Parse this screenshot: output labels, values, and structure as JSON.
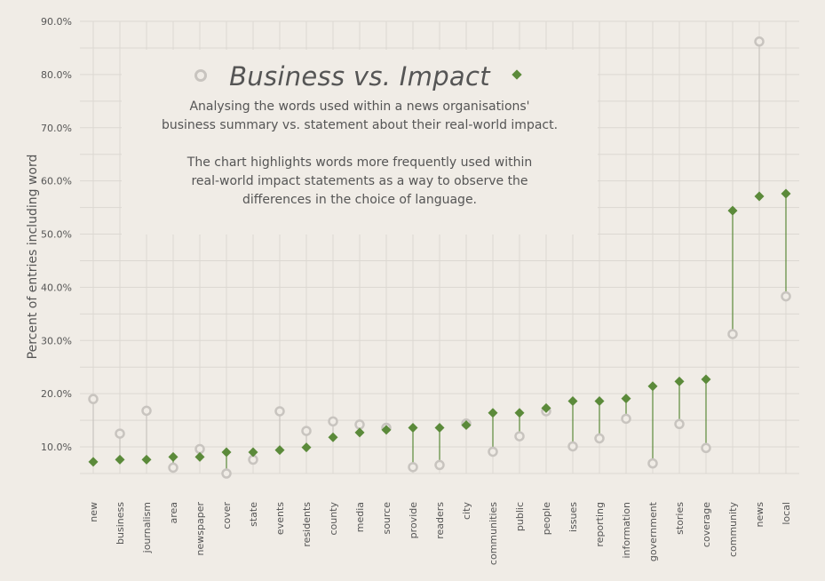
{
  "title": "Business vs. Impact",
  "description_1": "Analysing the words used within a news organisations'\nbusiness summary vs. statement about their real-world impact.",
  "description_2": "The chart highlights words more frequently used within\nreal-world impact statements as a way to observe the\ndifferences in the choice of language.",
  "colors": {
    "background": "#f0ece6",
    "grid": "#dcd8d2",
    "business_marker": "#c8c4bf",
    "impact_marker": "#5b8a3a",
    "text": "#555555"
  },
  "chart_data": {
    "type": "dumbbell",
    "ylabel": "Percent of entries including word",
    "ylim": [
      5,
      90
    ],
    "yticks": [
      "10.0%",
      "20.0%",
      "30.0%",
      "40.0%",
      "50.0%",
      "60.0%",
      "70.0%",
      "80.0%",
      "90.0%"
    ],
    "categories": [
      "new",
      "business",
      "journalism",
      "area",
      "newspaper",
      "cover",
      "state",
      "events",
      "residents",
      "county",
      "media",
      "source",
      "provide",
      "readers",
      "city",
      "communities",
      "public",
      "people",
      "issues",
      "reporting",
      "information",
      "government",
      "stories",
      "coverage",
      "community",
      "news",
      "local"
    ],
    "series": [
      {
        "name": "Business",
        "marker": "circle",
        "values": [
          19.0,
          12.5,
          16.8,
          6.1,
          9.6,
          5.0,
          7.6,
          16.7,
          13.0,
          14.8,
          14.2,
          13.6,
          6.2,
          6.6,
          14.4,
          9.1,
          12.0,
          16.7,
          10.1,
          11.6,
          15.3,
          6.9,
          14.3,
          9.8,
          31.2,
          86.2,
          38.3
        ]
      },
      {
        "name": "Impact",
        "marker": "diamond",
        "values": [
          7.2,
          7.6,
          7.6,
          8.1,
          8.1,
          9.0,
          9.0,
          9.4,
          9.9,
          11.8,
          12.7,
          13.2,
          13.6,
          13.6,
          14.1,
          16.4,
          16.4,
          17.3,
          18.6,
          18.6,
          19.1,
          21.4,
          22.3,
          22.7,
          54.4,
          57.1,
          57.6
        ]
      }
    ]
  }
}
